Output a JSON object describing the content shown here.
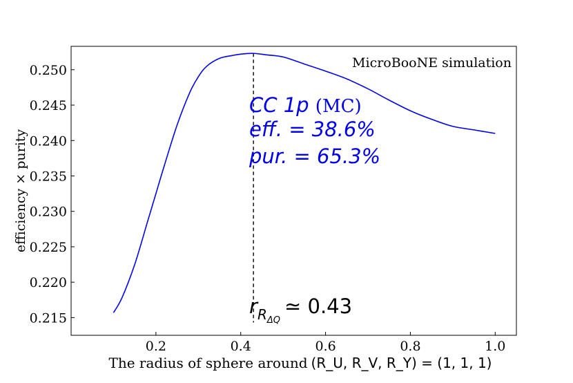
{
  "chart_data": {
    "type": "line",
    "xlabel_prefix": "The radius of sphere around",
    "xlabel_math": "(R_U, R_V, R_Y) = (1, 1, 1)",
    "ylabel": "efficiency × purity",
    "xlim": [
      0.0,
      1.05
    ],
    "ylim": [
      0.2125,
      0.2533
    ],
    "xticks": [
      {
        "value": 0.2,
        "label": "0.2"
      },
      {
        "value": 0.4,
        "label": "0.4"
      },
      {
        "value": 0.6,
        "label": "0.6"
      },
      {
        "value": 0.8,
        "label": "0.8"
      },
      {
        "value": 1.0,
        "label": "1.0"
      }
    ],
    "yticks": [
      {
        "value": 0.215,
        "label": "0.215"
      },
      {
        "value": 0.22,
        "label": "0.220"
      },
      {
        "value": 0.225,
        "label": "0.225"
      },
      {
        "value": 0.23,
        "label": "0.230"
      },
      {
        "value": 0.235,
        "label": "0.235"
      },
      {
        "value": 0.24,
        "label": "0.240"
      },
      {
        "value": 0.245,
        "label": "0.245"
      },
      {
        "value": 0.25,
        "label": "0.250"
      }
    ],
    "series": [
      {
        "color": "#0000ee",
        "x": [
          0.1,
          0.12,
          0.15,
          0.18,
          0.2,
          0.22,
          0.25,
          0.28,
          0.3,
          0.32,
          0.35,
          0.38,
          0.4,
          0.43,
          0.46,
          0.5,
          0.55,
          0.6,
          0.65,
          0.7,
          0.75,
          0.8,
          0.85,
          0.9,
          0.95,
          1.0
        ],
        "y": [
          0.2157,
          0.2178,
          0.2225,
          0.2285,
          0.2325,
          0.2365,
          0.2422,
          0.2468,
          0.249,
          0.2505,
          0.2516,
          0.252,
          0.2522,
          0.2523,
          0.2521,
          0.2518,
          0.2508,
          0.2498,
          0.2487,
          0.2473,
          0.2457,
          0.2442,
          0.243,
          0.242,
          0.2415,
          0.241
        ]
      }
    ],
    "vline": {
      "x": 0.43,
      "color": "#000000",
      "style": "dashed"
    },
    "corner_label": "MicroBooNE simulation",
    "annotation": {
      "line1_italic": "CC 1p",
      "line1_suffix": "(MC)",
      "line2": "eff. = 38.6%",
      "line3": "pur. = 65.3%",
      "color": "#0000ee"
    },
    "r_annotation": {
      "symbol": "r",
      "subscript": "R",
      "subsubscript": "ΔQ",
      "value": "≃ 0.43"
    },
    "grid": false,
    "legend": "none"
  }
}
